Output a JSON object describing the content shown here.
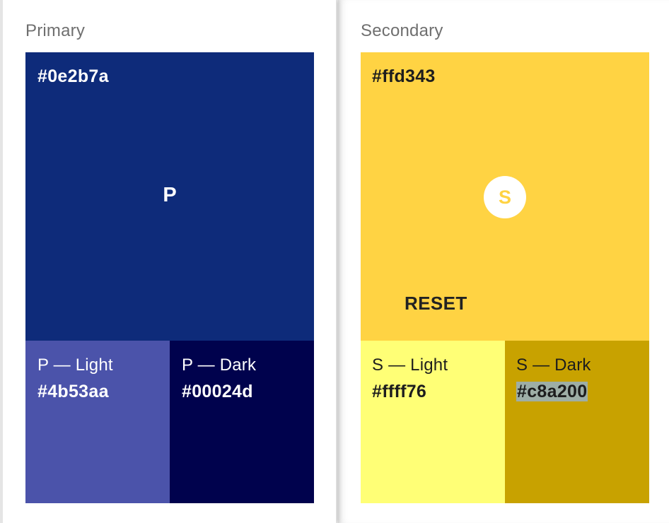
{
  "primary": {
    "title": "Primary",
    "main": {
      "hex": "#0e2b7a",
      "letter": "P",
      "color": "#0e2b7a"
    },
    "light": {
      "label": "P — Light",
      "hex": "#4b53aa",
      "color": "#4b53aa"
    },
    "dark": {
      "label": "P — Dark",
      "hex": "#00024d",
      "color": "#00024d"
    }
  },
  "secondary": {
    "title": "Secondary",
    "main": {
      "hex": "#ffd343",
      "letter": "S",
      "color": "#ffd343"
    },
    "reset_label": "RESET",
    "light": {
      "label": "S — Light",
      "hex": "#ffff76",
      "color": "#ffff76"
    },
    "dark": {
      "label": "S — Dark",
      "hex": "#c8a200",
      "color": "#c8a200",
      "hex_selected": true
    }
  }
}
